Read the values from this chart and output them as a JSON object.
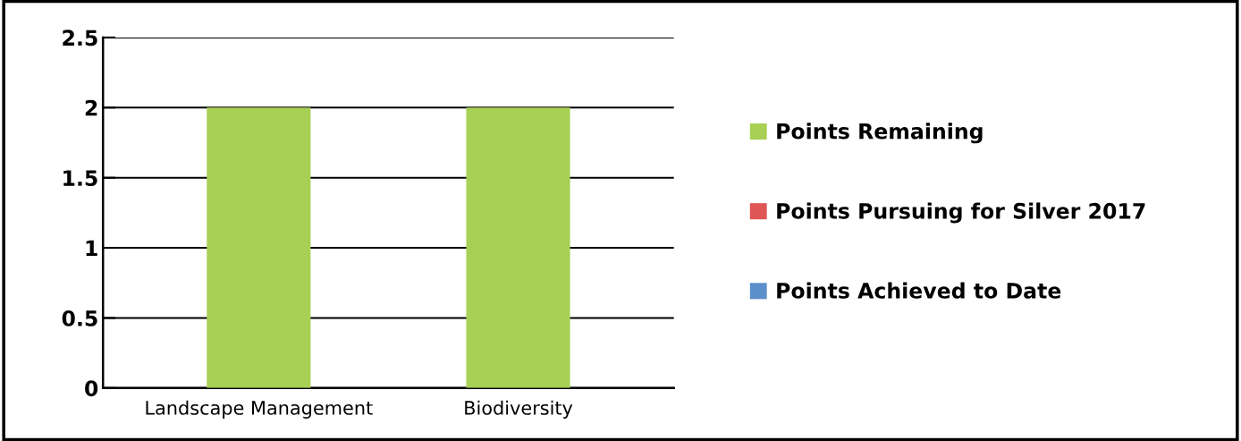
{
  "chart_data": {
    "type": "bar",
    "stacked": true,
    "categories": [
      "Landscape Management",
      "Biodiversity"
    ],
    "series": [
      {
        "name": "Points Achieved to Date",
        "color": "#5b8fcb",
        "values": [
          0,
          0
        ]
      },
      {
        "name": "Points Pursuing for Silver 2017",
        "color": "#e05555",
        "values": [
          0,
          0
        ]
      },
      {
        "name": "Points Remaining",
        "color": "#a7d054",
        "values": [
          2,
          2
        ]
      }
    ],
    "ylim": [
      0,
      2.5
    ],
    "yticks": [
      0,
      0.5,
      1,
      1.5,
      2,
      2.5
    ],
    "grid": "y",
    "legend": "right"
  }
}
